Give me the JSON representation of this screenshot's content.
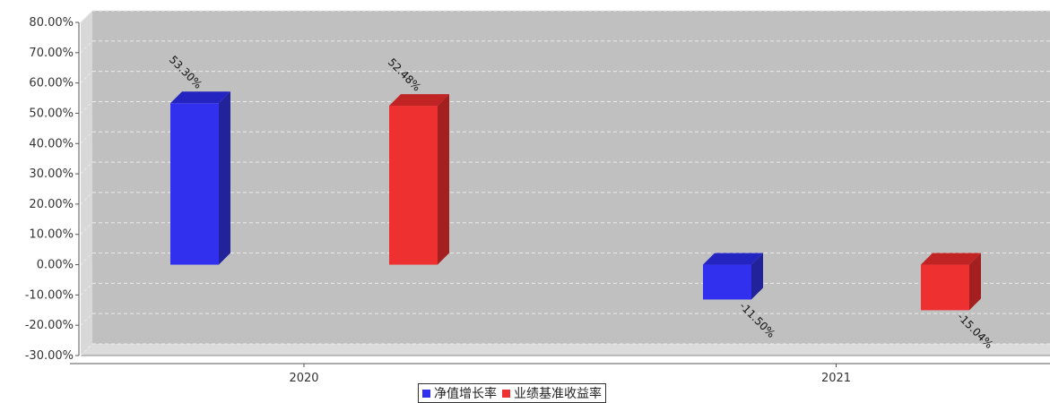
{
  "chart_data": {
    "type": "bar",
    "categories": [
      "2020",
      "2021"
    ],
    "series": [
      {
        "name": "净值增长率",
        "values": [
          53.3,
          -11.5
        ],
        "labels": [
          "53.30%",
          "-11.50%"
        ],
        "color": "#3030ee",
        "side_color": "#22229a",
        "top_color": "#2424c0"
      },
      {
        "name": "业绩基准收益率",
        "values": [
          52.48,
          -15.04
        ],
        "labels": [
          "52.48%",
          "-15.04%"
        ],
        "color": "#ee3030",
        "side_color": "#a41f1f",
        "top_color": "#c02424"
      }
    ],
    "ylim": [
      -30,
      80
    ],
    "yticks": [
      80,
      70,
      60,
      50,
      40,
      30,
      20,
      10,
      0,
      -10,
      -20,
      -30
    ],
    "ytick_labels": [
      "80.00%",
      "70.00%",
      "60.00%",
      "50.00%",
      "40.00%",
      "30.00%",
      "20.00%",
      "10.00%",
      "0.00%",
      "-10.00%",
      "-20.00%",
      "-30.00%"
    ],
    "title": "",
    "xlabel": "",
    "ylabel": "",
    "grid": true,
    "legend_position": "bottom-center",
    "plot_background": "#c0c0c0"
  }
}
